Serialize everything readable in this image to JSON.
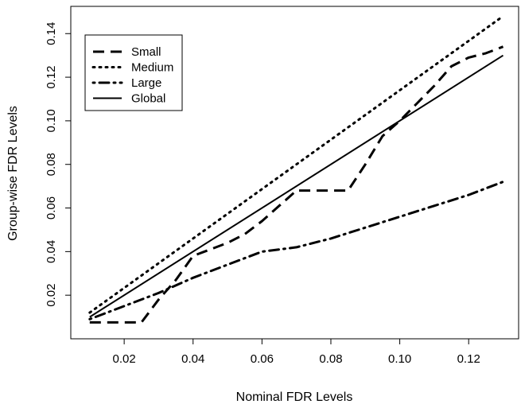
{
  "chart_data": {
    "type": "line",
    "title": "",
    "xlabel": "Nominal FDR Levels",
    "ylabel": "Group-wise FDR Levels",
    "xlim": [
      0.0045,
      0.1345
    ],
    "ylim": [
      0.0,
      0.1525
    ],
    "xticks": [
      "0.02",
      "0.04",
      "0.06",
      "0.08",
      "0.10",
      "0.12"
    ],
    "yticks": [
      "0.02",
      "0.04",
      "0.06",
      "0.08",
      "0.10",
      "0.12",
      "0.14"
    ],
    "grid": false,
    "legend_position": "top-left",
    "series": [
      {
        "name": "Small",
        "dash": "dashed",
        "x": [
          0.01,
          0.015,
          0.02,
          0.025,
          0.03,
          0.035,
          0.04,
          0.045,
          0.05,
          0.055,
          0.06,
          0.065,
          0.07,
          0.075,
          0.08,
          0.085,
          0.09,
          0.095,
          0.1,
          0.105,
          0.11,
          0.115,
          0.12,
          0.125,
          0.13
        ],
        "y": [
          0.0075,
          0.0075,
          0.0075,
          0.0075,
          0.018,
          0.027,
          0.038,
          0.041,
          0.044,
          0.048,
          0.054,
          0.061,
          0.068,
          0.068,
          0.068,
          0.068,
          0.08,
          0.093,
          0.1,
          0.108,
          0.116,
          0.125,
          0.129,
          0.131,
          0.134
        ]
      },
      {
        "name": "Medium",
        "dash": "dotted",
        "x": [
          0.01,
          0.13
        ],
        "y": [
          0.012,
          0.148
        ]
      },
      {
        "name": "Large",
        "dash": "dotdash",
        "x": [
          0.01,
          0.02,
          0.03,
          0.04,
          0.05,
          0.06,
          0.07,
          0.08,
          0.09,
          0.1,
          0.11,
          0.12,
          0.13
        ],
        "y": [
          0.009,
          0.015,
          0.021,
          0.028,
          0.034,
          0.04,
          0.042,
          0.046,
          0.051,
          0.056,
          0.061,
          0.066,
          0.072
        ]
      },
      {
        "name": "Global",
        "dash": "solid",
        "x": [
          0.01,
          0.13
        ],
        "y": [
          0.01,
          0.13
        ]
      }
    ]
  }
}
